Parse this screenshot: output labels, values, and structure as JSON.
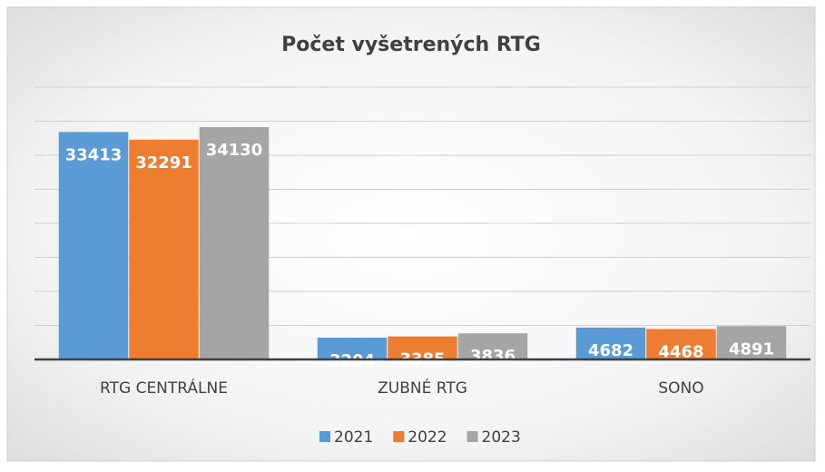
{
  "chart_data": {
    "type": "bar",
    "title": "Počet vyšetrených RTG",
    "categories": [
      "RTG CENTRÁLNE",
      "ZUBNÉ RTG",
      "SONO"
    ],
    "series": [
      {
        "name": "2021",
        "color": "#5b9bd5",
        "values": [
          33413,
          3204,
          4682
        ]
      },
      {
        "name": "2022",
        "color": "#ed7d31",
        "values": [
          32291,
          3385,
          4468
        ]
      },
      {
        "name": "2023",
        "color": "#a5a5a5",
        "values": [
          34130,
          3836,
          4891
        ]
      }
    ],
    "ylim": [
      0,
      40000
    ],
    "yticks": [
      0,
      5000,
      10000,
      15000,
      20000,
      25000,
      30000,
      35000,
      40000
    ],
    "grid": true,
    "legend": "bottom"
  }
}
